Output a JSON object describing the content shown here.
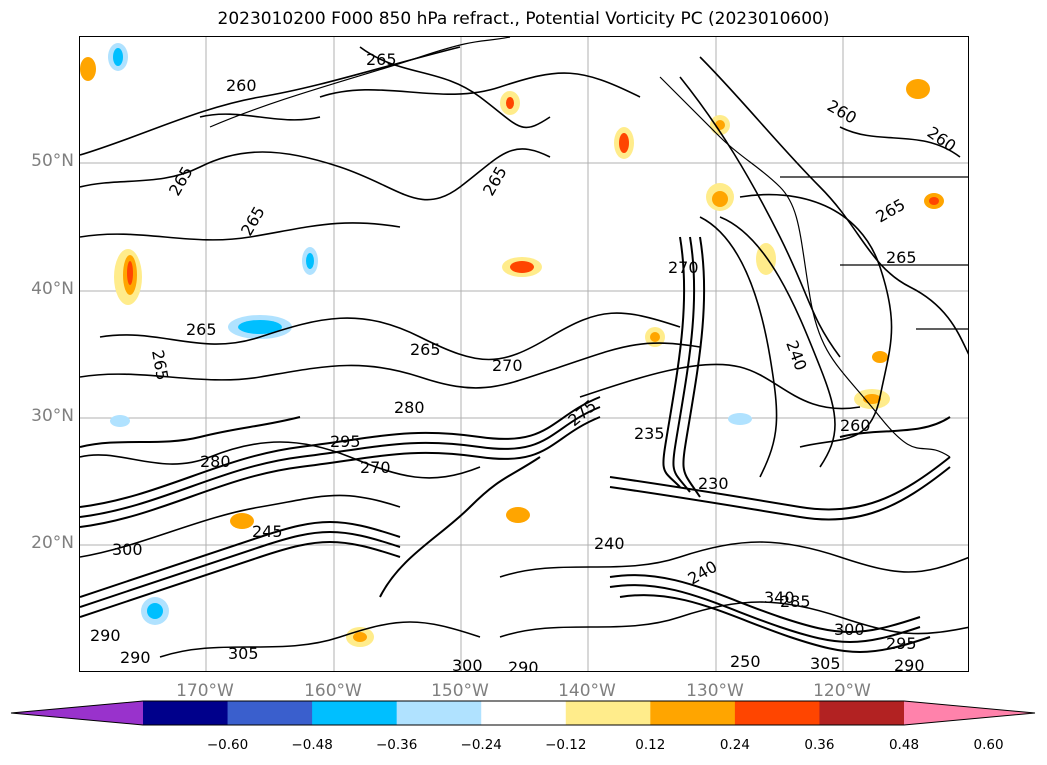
{
  "title": "2023010200 F000 850 hPa refract., Potential Vorticity PC (2023010600)",
  "lat_labels": [
    "50°N",
    "40°N",
    "30°N",
    "20°N"
  ],
  "lon_labels": [
    "170°W",
    "160°W",
    "150°W",
    "140°W",
    "130°W",
    "120°W"
  ],
  "contour_labels": [
    "260",
    "265",
    "265",
    "265",
    "265",
    "265",
    "265",
    "265",
    "260",
    "260",
    "265",
    "265",
    "270",
    "275",
    "280",
    "295",
    "270",
    "280",
    "235",
    "230",
    "240",
    "245",
    "300",
    "290",
    "290",
    "305",
    "300",
    "290",
    "285",
    "240",
    "340",
    "305",
    "300",
    "295",
    "290",
    "250",
    "240",
    "270",
    "260"
  ],
  "colorbar": {
    "ticks": [
      "−0.60",
      "−0.48",
      "−0.36",
      "−0.24",
      "−0.12",
      "0.12",
      "0.24",
      "0.36",
      "0.48",
      "0.60"
    ],
    "colors": [
      "#9932cc",
      "#00008b",
      "#3a5fcd",
      "#00bfff",
      "#b0e2ff",
      "#ffffff",
      "#ffec8b",
      "#ffa500",
      "#ff4500",
      "#b22222",
      "#ff82ab"
    ]
  },
  "map": {
    "projection": "lat-lon",
    "lat_range": [
      10,
      60
    ],
    "lon_range": [
      -180,
      -110
    ],
    "field": "850 hPa refractivity contours with potential vorticity PC shading"
  }
}
